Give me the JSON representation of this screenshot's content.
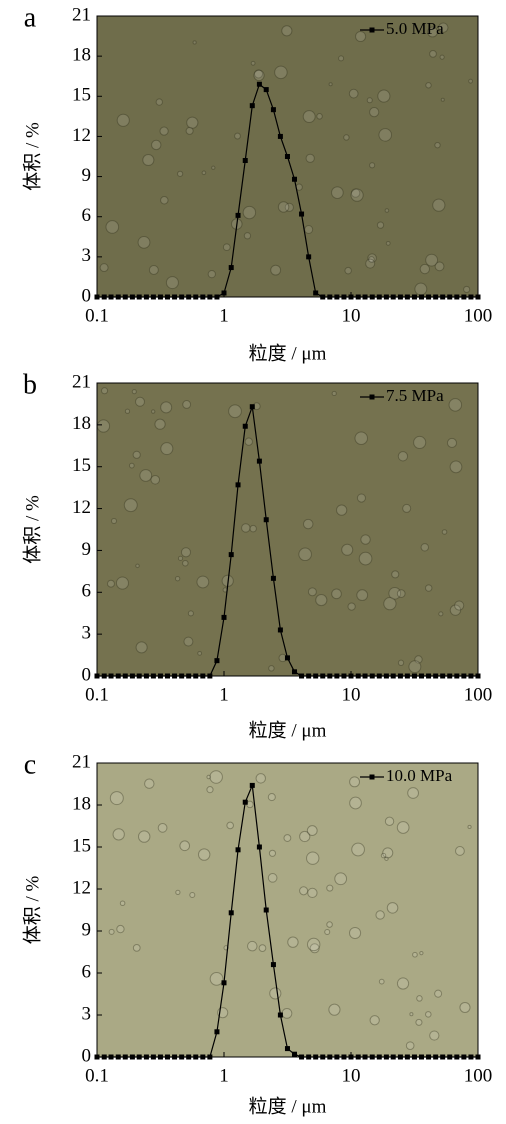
{
  "chart_data": [
    {
      "type": "line",
      "panel": "a",
      "xlabel": "粒度 / μm",
      "ylabel": "体积 / %",
      "xscale": "log",
      "xlim": [
        0.1,
        100
      ],
      "xticks": [
        0.1,
        1,
        10,
        100
      ],
      "ylim": [
        0,
        21
      ],
      "yticks": [
        0,
        3,
        6,
        9,
        12,
        15,
        18,
        21
      ],
      "legend": "upper right",
      "background": "#6f6d4b",
      "x": [
        0.1,
        0.114,
        0.129,
        0.147,
        0.167,
        0.19,
        0.215,
        0.245,
        0.278,
        0.316,
        0.359,
        0.408,
        0.464,
        0.527,
        0.599,
        0.681,
        0.774,
        0.88,
        1,
        1.14,
        1.29,
        1.47,
        1.67,
        1.9,
        2.15,
        2.45,
        2.78,
        3.16,
        3.59,
        4.08,
        4.64,
        5.27,
        5.99,
        6.81,
        7.74,
        8.8,
        10,
        11.4,
        12.9,
        14.7,
        16.7,
        19,
        21.5,
        24.5,
        27.8,
        31.6,
        35.9,
        40.8,
        46.4,
        52.7,
        59.9,
        68.1,
        77.4,
        88,
        100
      ],
      "series": [
        {
          "name": "5.0 MPa",
          "color": "#000000",
          "values": [
            0,
            0,
            0,
            0,
            0,
            0,
            0,
            0,
            0,
            0,
            0,
            0,
            0,
            0,
            0,
            0,
            0,
            0,
            0.3,
            2.2,
            6.1,
            10.2,
            14.3,
            15.9,
            15.5,
            14.0,
            12.0,
            10.5,
            8.8,
            6.2,
            3.0,
            0.3,
            0,
            0,
            0,
            0,
            0,
            0,
            0,
            0,
            0,
            0,
            0,
            0,
            0,
            0,
            0,
            0,
            0,
            0,
            0,
            0,
            0,
            0,
            0
          ]
        }
      ]
    },
    {
      "type": "line",
      "panel": "b",
      "xlabel": "粒度 / μm",
      "ylabel": "体积 / %",
      "xscale": "log",
      "xlim": [
        0.1,
        100
      ],
      "xticks": [
        0.1,
        1,
        10,
        100
      ],
      "ylim": [
        0,
        21
      ],
      "yticks": [
        0,
        3,
        6,
        9,
        12,
        15,
        18,
        21
      ],
      "legend": "upper right",
      "background": "#75724f",
      "x": [
        0.1,
        0.114,
        0.129,
        0.147,
        0.167,
        0.19,
        0.215,
        0.245,
        0.278,
        0.316,
        0.359,
        0.408,
        0.464,
        0.527,
        0.599,
        0.681,
        0.774,
        0.88,
        1,
        1.14,
        1.29,
        1.47,
        1.67,
        1.9,
        2.15,
        2.45,
        2.78,
        3.16,
        3.59,
        4.08,
        4.64,
        5.27,
        5.99,
        6.81,
        7.74,
        8.8,
        10,
        11.4,
        12.9,
        14.7,
        16.7,
        19,
        21.5,
        24.5,
        27.8,
        31.6,
        35.9,
        40.8,
        46.4,
        52.7,
        59.9,
        68.1,
        77.4,
        88,
        100
      ],
      "series": [
        {
          "name": "7.5 MPa",
          "color": "#000000",
          "values": [
            0,
            0,
            0,
            0,
            0,
            0,
            0,
            0,
            0,
            0,
            0,
            0,
            0,
            0,
            0,
            0,
            0,
            1.1,
            4.2,
            8.7,
            13.7,
            17.9,
            19.3,
            15.4,
            11.2,
            7.0,
            3.3,
            1.3,
            0.3,
            0,
            0,
            0,
            0,
            0,
            0,
            0,
            0,
            0,
            0,
            0,
            0,
            0,
            0,
            0,
            0,
            0,
            0,
            0,
            0,
            0,
            0,
            0,
            0,
            0,
            0
          ]
        }
      ]
    },
    {
      "type": "line",
      "panel": "c",
      "xlabel": "粒度 / μm",
      "ylabel": "体积 / %",
      "xscale": "log",
      "xlim": [
        0.1,
        100
      ],
      "xticks": [
        0.1,
        1,
        10,
        100
      ],
      "ylim": [
        0,
        21
      ],
      "yticks": [
        0,
        3,
        6,
        9,
        12,
        15,
        18,
        21
      ],
      "legend": "upper right",
      "background": "#aaa985",
      "x": [
        0.1,
        0.114,
        0.129,
        0.147,
        0.167,
        0.19,
        0.215,
        0.245,
        0.278,
        0.316,
        0.359,
        0.408,
        0.464,
        0.527,
        0.599,
        0.681,
        0.774,
        0.88,
        1,
        1.14,
        1.29,
        1.47,
        1.67,
        1.9,
        2.15,
        2.45,
        2.78,
        3.16,
        3.59,
        4.08,
        4.64,
        5.27,
        5.99,
        6.81,
        7.74,
        8.8,
        10,
        11.4,
        12.9,
        14.7,
        16.7,
        19,
        21.5,
        24.5,
        27.8,
        31.6,
        35.9,
        40.8,
        46.4,
        52.7,
        59.9,
        68.1,
        77.4,
        88,
        100
      ],
      "series": [
        {
          "name": "10.0 MPa",
          "color": "#000000",
          "values": [
            0,
            0,
            0,
            0,
            0,
            0,
            0,
            0,
            0,
            0,
            0,
            0,
            0,
            0,
            0,
            0,
            0,
            1.8,
            5.3,
            10.3,
            14.8,
            18.2,
            19.4,
            15.0,
            10.5,
            6.6,
            3.0,
            0.6,
            0.2,
            0,
            0,
            0,
            0,
            0,
            0,
            0,
            0,
            0,
            0,
            0,
            0,
            0,
            0,
            0,
            0,
            0,
            0,
            0,
            0,
            0,
            0,
            0,
            0,
            0,
            0
          ]
        }
      ]
    }
  ]
}
